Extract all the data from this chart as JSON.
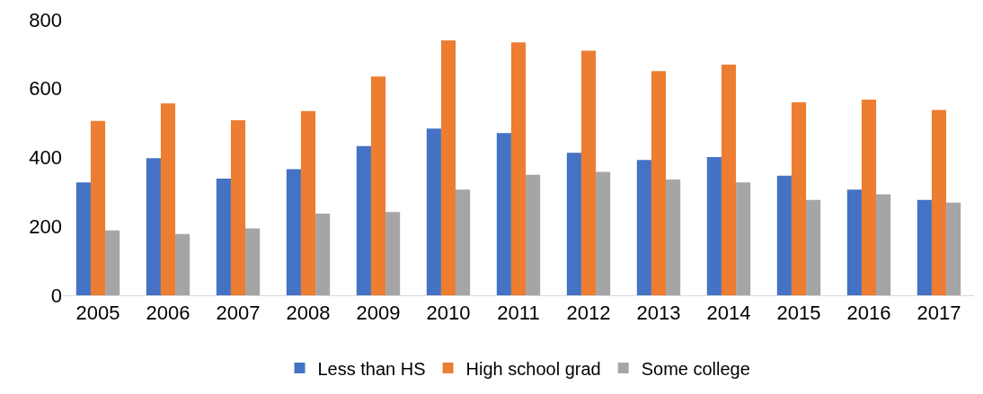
{
  "chart_data": {
    "type": "bar",
    "categories": [
      "2005",
      "2006",
      "2007",
      "2008",
      "2009",
      "2010",
      "2011",
      "2012",
      "2013",
      "2014",
      "2015",
      "2016",
      "2017"
    ],
    "series": [
      {
        "name": "Less than HS",
        "color": "#4472c4",
        "values": [
          328,
          398,
          339,
          366,
          433,
          484,
          471,
          414,
          393,
          401,
          347,
          307,
          277
        ]
      },
      {
        "name": "High school grad",
        "color": "#ed7d31",
        "values": [
          506,
          557,
          508,
          535,
          635,
          740,
          734,
          710,
          651,
          670,
          560,
          568,
          538
        ]
      },
      {
        "name": "Some college",
        "color": "#a5a5a5",
        "values": [
          188,
          178,
          194,
          237,
          242,
          307,
          350,
          358,
          336,
          328,
          277,
          293,
          269
        ]
      }
    ],
    "ylim": [
      0,
      800
    ],
    "yticks": [
      0,
      200,
      400,
      600,
      800
    ],
    "grid": false,
    "legend": "bottom"
  }
}
